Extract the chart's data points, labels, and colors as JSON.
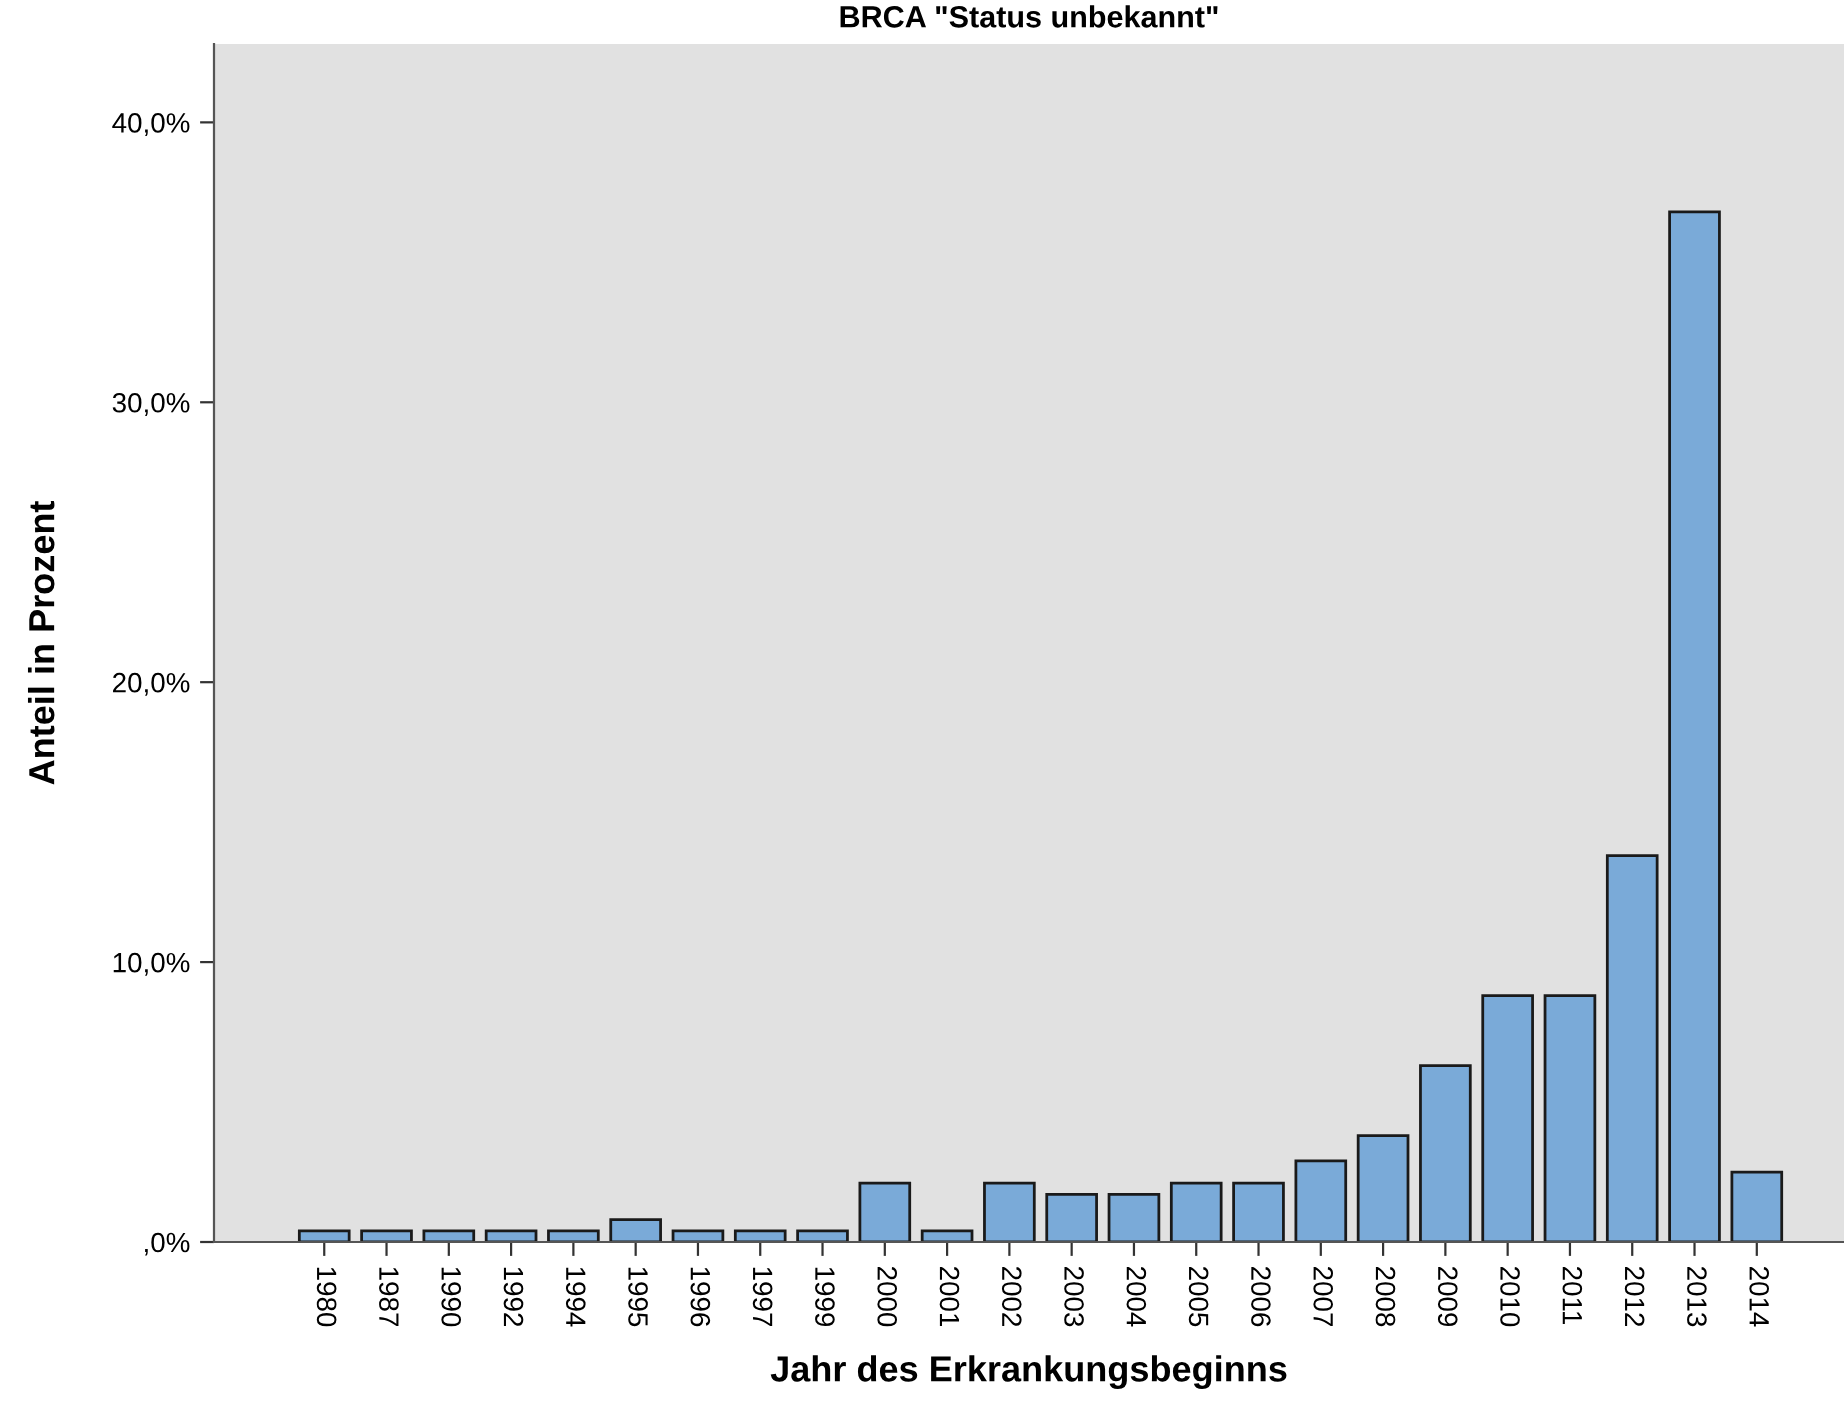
{
  "chart_data": {
    "type": "bar",
    "title": "BRCA \"Status unbekannt\"",
    "xlabel": "Jahr des Erkrankungsbeginns",
    "ylabel": "Anteil in Prozent",
    "categories": [
      "1980",
      "1987",
      "1990",
      "1992",
      "1994",
      "1995",
      "1996",
      "1997",
      "1999",
      "2000",
      "2001",
      "2002",
      "2003",
      "2004",
      "2005",
      "2006",
      "2007",
      "2008",
      "2009",
      "2010",
      "2011",
      "2012",
      "2013",
      "2014"
    ],
    "values": [
      0.4,
      0.4,
      0.4,
      0.4,
      0.4,
      0.8,
      0.4,
      0.4,
      0.4,
      2.1,
      0.4,
      2.1,
      1.7,
      1.7,
      2.1,
      2.1,
      2.9,
      3.8,
      6.3,
      8.8,
      8.8,
      13.8,
      36.8,
      2.5
    ],
    "color": "#7aaad8",
    "ylim": [
      0,
      42.8
    ],
    "yticks": [
      {
        "value": 0,
        "label": ",0%"
      },
      {
        "value": 10,
        "label": "10,0%"
      },
      {
        "value": 20,
        "label": "20,0%"
      },
      {
        "value": 30,
        "label": "30,0%"
      },
      {
        "value": 40,
        "label": "40,0%"
      }
    ],
    "grid": false,
    "legend": false
  }
}
